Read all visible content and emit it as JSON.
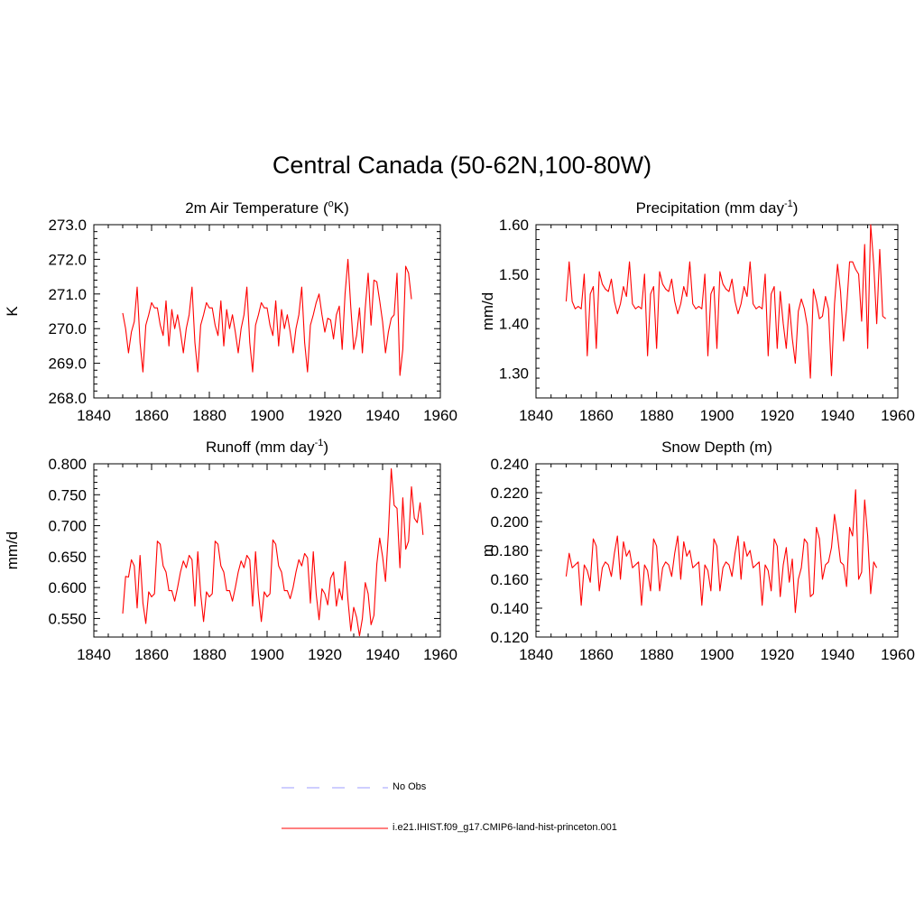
{
  "figure": {
    "title": "Central Canada (50-62N,100-80W)"
  },
  "chart_data": [
    {
      "type": "line",
      "title": "2m Air Temperature (",
      "title_sup": "o",
      "title_after": "K)",
      "ylabel": "K",
      "xlim": [
        1840,
        1960
      ],
      "ylim": [
        268.0,
        273.0
      ],
      "xticks": [
        1840,
        1860,
        1880,
        1900,
        1920,
        1940,
        1960
      ],
      "yticks": [
        "268.0",
        "269.0",
        "270.0",
        "271.0",
        "272.0",
        "273.0"
      ],
      "x_start": 1850,
      "series": [
        {
          "color": "#ff0000",
          "values": [
            270.45,
            270.0,
            269.3,
            269.9,
            270.2,
            271.2,
            269.6,
            268.75,
            270.1,
            270.4,
            270.75,
            270.6,
            270.6,
            270.1,
            269.8,
            270.8,
            269.5,
            270.55,
            270.0,
            270.4,
            269.9,
            269.3,
            270.0,
            270.4,
            271.2,
            269.6,
            268.75,
            270.1,
            270.4,
            270.75,
            270.6,
            270.6,
            270.1,
            269.8,
            270.8,
            269.5,
            270.55,
            270.0,
            270.4,
            269.9,
            269.3,
            270.0,
            270.4,
            271.2,
            269.6,
            268.75,
            270.1,
            270.4,
            270.75,
            270.6,
            270.6,
            270.1,
            269.8,
            270.8,
            269.5,
            270.55,
            270.0,
            270.4,
            269.9,
            269.3,
            270.0,
            270.4,
            271.2,
            269.6,
            268.75,
            270.1,
            270.4,
            270.75,
            271.0,
            270.4,
            269.9,
            270.3,
            270.25,
            269.7,
            270.4,
            270.65,
            269.4,
            271.0,
            272.0,
            270.6,
            269.4,
            269.8,
            270.6,
            269.3,
            270.6,
            271.6,
            270.1,
            271.4,
            271.35,
            270.8,
            270.2,
            269.3,
            269.9,
            270.3,
            270.4,
            271.6,
            268.65,
            269.4,
            271.8,
            271.6,
            270.85
          ]
        }
      ]
    },
    {
      "type": "line",
      "title": "Precipitation (mm day",
      "title_sup": "-1",
      "title_after": ")",
      "ylabel": "mm/d",
      "xlim": [
        1840,
        1960
      ],
      "ylim": [
        1.25,
        1.6
      ],
      "xticks": [
        1840,
        1860,
        1880,
        1900,
        1920,
        1940,
        1960
      ],
      "yticks": [
        "1.30",
        "1.40",
        "1.50",
        "1.60"
      ],
      "x_start": 1850,
      "series": [
        {
          "color": "#ff0000",
          "values": [
            1.445,
            1.525,
            1.445,
            1.43,
            1.435,
            1.43,
            1.5,
            1.335,
            1.46,
            1.475,
            1.35,
            1.505,
            1.48,
            1.47,
            1.465,
            1.49,
            1.445,
            1.42,
            1.44,
            1.475,
            1.455,
            1.525,
            1.44,
            1.43,
            1.435,
            1.43,
            1.5,
            1.335,
            1.46,
            1.475,
            1.35,
            1.505,
            1.48,
            1.47,
            1.465,
            1.49,
            1.445,
            1.42,
            1.44,
            1.475,
            1.455,
            1.525,
            1.44,
            1.43,
            1.435,
            1.43,
            1.5,
            1.335,
            1.46,
            1.475,
            1.35,
            1.505,
            1.48,
            1.47,
            1.465,
            1.49,
            1.445,
            1.42,
            1.44,
            1.475,
            1.455,
            1.525,
            1.44,
            1.43,
            1.435,
            1.43,
            1.5,
            1.335,
            1.46,
            1.475,
            1.35,
            1.465,
            1.4,
            1.35,
            1.44,
            1.37,
            1.32,
            1.425,
            1.45,
            1.43,
            1.395,
            1.29,
            1.47,
            1.445,
            1.41,
            1.415,
            1.455,
            1.43,
            1.295,
            1.44,
            1.52,
            1.465,
            1.365,
            1.43,
            1.525,
            1.525,
            1.51,
            1.5,
            1.405,
            1.56,
            1.35,
            1.6,
            1.52,
            1.4,
            1.55,
            1.415,
            1.41
          ]
        }
      ]
    },
    {
      "type": "line",
      "title": "Runoff (mm day",
      "title_sup": "-1",
      "title_after": ")",
      "ylabel": "mm/d",
      "xlim": [
        1840,
        1960
      ],
      "ylim": [
        0.52,
        0.8
      ],
      "xticks": [
        1840,
        1860,
        1880,
        1900,
        1920,
        1940,
        1960
      ],
      "yticks": [
        "0.550",
        "0.600",
        "0.650",
        "0.700",
        "0.750",
        "0.800"
      ],
      "x_start": 1850,
      "series": [
        {
          "color": "#ff0000",
          "values": [
            0.558,
            0.618,
            0.617,
            0.645,
            0.635,
            0.567,
            0.652,
            0.575,
            0.542,
            0.593,
            0.585,
            0.59,
            0.675,
            0.67,
            0.635,
            0.625,
            0.595,
            0.595,
            0.578,
            0.6,
            0.625,
            0.643,
            0.632,
            0.652,
            0.645,
            0.57,
            0.658,
            0.59,
            0.545,
            0.593,
            0.585,
            0.59,
            0.675,
            0.67,
            0.635,
            0.625,
            0.595,
            0.595,
            0.578,
            0.6,
            0.625,
            0.643,
            0.632,
            0.652,
            0.645,
            0.57,
            0.658,
            0.59,
            0.545,
            0.593,
            0.585,
            0.59,
            0.677,
            0.67,
            0.635,
            0.625,
            0.595,
            0.595,
            0.582,
            0.6,
            0.625,
            0.645,
            0.635,
            0.655,
            0.648,
            0.575,
            0.658,
            0.59,
            0.548,
            0.598,
            0.59,
            0.572,
            0.615,
            0.625,
            0.57,
            0.598,
            0.58,
            0.642,
            0.58,
            0.53,
            0.568,
            0.552,
            0.522,
            0.55,
            0.608,
            0.59,
            0.54,
            0.555,
            0.638,
            0.68,
            0.65,
            0.61,
            0.688,
            0.792,
            0.733,
            0.728,
            0.632,
            0.745,
            0.662,
            0.675,
            0.763,
            0.712,
            0.705,
            0.737,
            0.685
          ]
        }
      ]
    },
    {
      "type": "line",
      "title": "Snow Depth (m)",
      "title_sup": "",
      "title_after": "",
      "ylabel": "m",
      "xlim": [
        1840,
        1960
      ],
      "ylim": [
        0.12,
        0.24
      ],
      "xticks": [
        1840,
        1860,
        1880,
        1900,
        1920,
        1940,
        1960
      ],
      "yticks": [
        "0.120",
        "0.140",
        "0.160",
        "0.180",
        "0.200",
        "0.220",
        "0.240"
      ],
      "x_start": 1850,
      "series": [
        {
          "color": "#ff0000",
          "values": [
            0.162,
            0.178,
            0.168,
            0.17,
            0.172,
            0.142,
            0.17,
            0.166,
            0.158,
            0.188,
            0.183,
            0.152,
            0.168,
            0.172,
            0.17,
            0.162,
            0.178,
            0.19,
            0.16,
            0.186,
            0.176,
            0.18,
            0.168,
            0.17,
            0.172,
            0.142,
            0.17,
            0.166,
            0.152,
            0.188,
            0.183,
            0.152,
            0.168,
            0.172,
            0.17,
            0.162,
            0.178,
            0.19,
            0.16,
            0.186,
            0.176,
            0.18,
            0.168,
            0.17,
            0.172,
            0.142,
            0.17,
            0.166,
            0.152,
            0.188,
            0.183,
            0.152,
            0.168,
            0.172,
            0.17,
            0.162,
            0.178,
            0.19,
            0.16,
            0.186,
            0.176,
            0.18,
            0.168,
            0.17,
            0.172,
            0.142,
            0.17,
            0.166,
            0.152,
            0.188,
            0.183,
            0.148,
            0.17,
            0.182,
            0.158,
            0.174,
            0.137,
            0.16,
            0.168,
            0.188,
            0.185,
            0.148,
            0.15,
            0.196,
            0.188,
            0.16,
            0.17,
            0.172,
            0.182,
            0.205,
            0.19,
            0.172,
            0.17,
            0.155,
            0.196,
            0.19,
            0.222,
            0.16,
            0.165,
            0.215,
            0.19,
            0.15,
            0.172,
            0.168
          ]
        }
      ]
    }
  ],
  "legend": {
    "items": [
      {
        "label": "No Obs",
        "color": "#9c9cff",
        "dash": "14 14"
      },
      {
        "label": "i.e21.IHIST.f09_g17.CMIP6-land-hist-princeton.001",
        "color": "#ff0000",
        "dash": ""
      }
    ]
  }
}
